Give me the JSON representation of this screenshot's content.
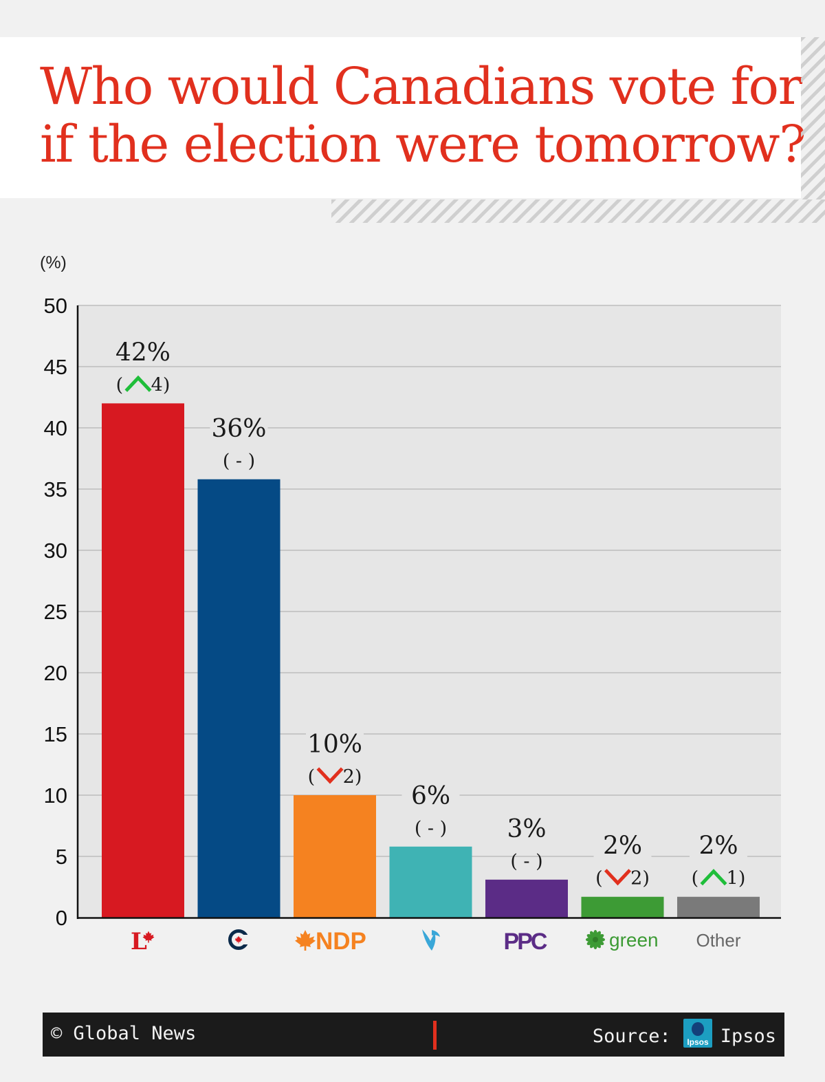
{
  "title": {
    "line1": "Who would Canadians vote for",
    "line2": "if the election were tomorrow?"
  },
  "footer": {
    "copyright": "© Global News",
    "source_label": "Source:",
    "source_name": "Ipsos",
    "logo_text": "Ipsos"
  },
  "chart_data": {
    "type": "bar",
    "title": "Who would Canadians vote for if the election were tomorrow?",
    "ylabel": "(%)",
    "ylim": [
      0,
      50
    ],
    "yticks": [
      "0",
      "5",
      "10",
      "15",
      "20",
      "25",
      "30",
      "35",
      "40",
      "45",
      "50"
    ],
    "grid": true,
    "categories": [
      "Liberal",
      "Conservative",
      "NDP",
      "Bloc",
      "PPC",
      "green",
      "Other"
    ],
    "values": [
      42,
      36,
      10,
      6,
      3,
      2,
      2
    ],
    "bar_plot_values": [
      42,
      35.8,
      10,
      5.8,
      3.1,
      1.7,
      1.7
    ],
    "value_labels": [
      "42%",
      "36%",
      "10%",
      "6%",
      "3%",
      "2%",
      "2%"
    ],
    "changes": [
      {
        "direction": "up",
        "value": "4"
      },
      {
        "direction": "none",
        "value": "-"
      },
      {
        "direction": "down",
        "value": "2"
      },
      {
        "direction": "none",
        "value": "-"
      },
      {
        "direction": "none",
        "value": "-"
      },
      {
        "direction": "down",
        "value": "2"
      },
      {
        "direction": "up",
        "value": "1"
      }
    ],
    "colors": [
      "#d71921",
      "#054a85",
      "#f58220",
      "#3fb3b4",
      "#5b2c86",
      "#3d9b35",
      "#7a7a7a"
    ],
    "axis_labels": {
      "ndp": "NDP",
      "ppc": "PPC",
      "green": "green",
      "other": "Other"
    },
    "arrow_colors": {
      "up": "#1fbe3a",
      "down": "#e1301e"
    }
  }
}
